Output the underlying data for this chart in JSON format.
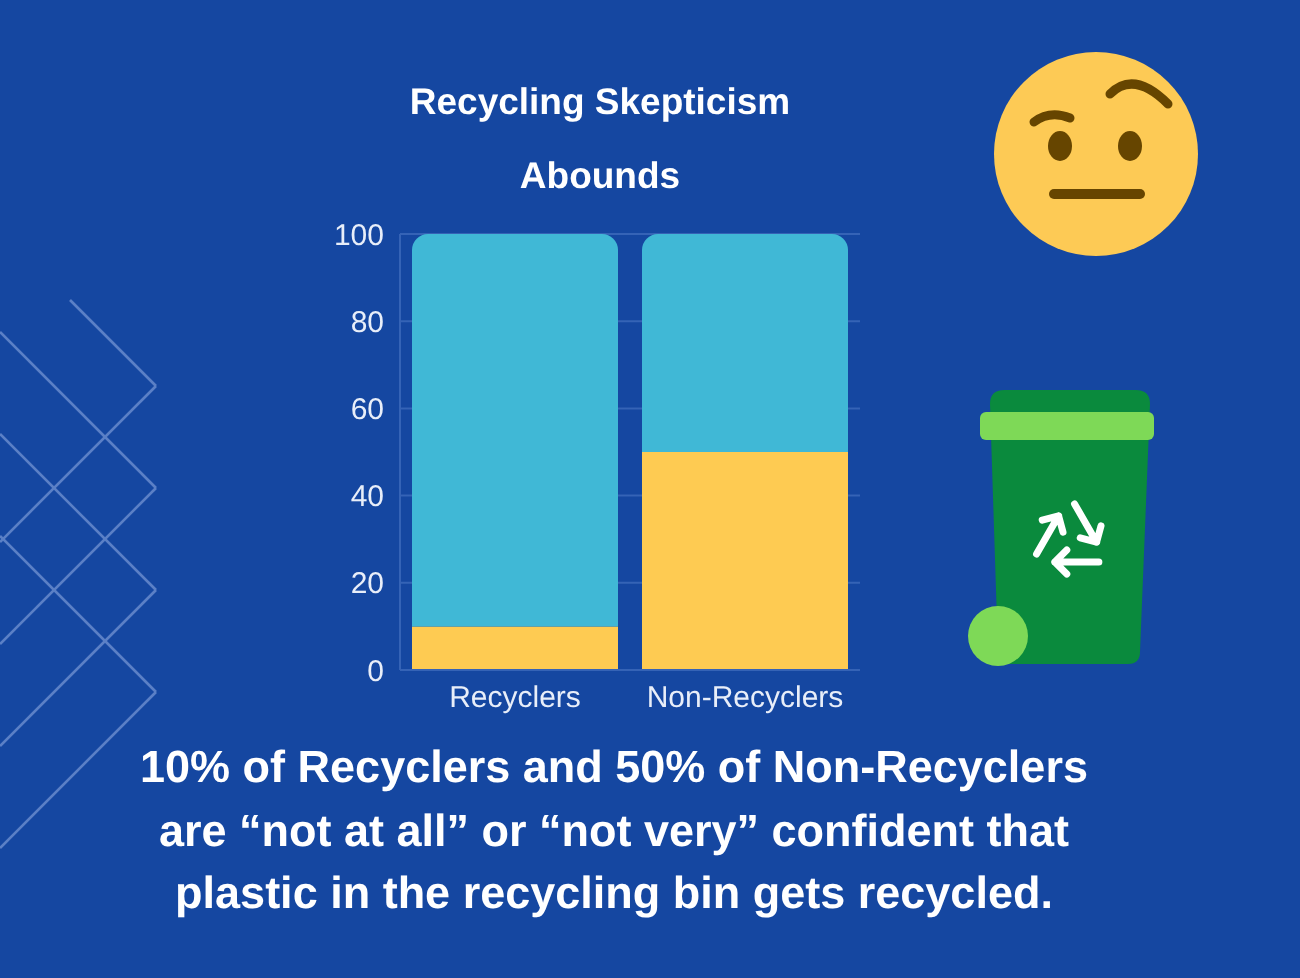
{
  "chart_data": {
    "type": "bar",
    "title": "Recycling Skepticism Abounds",
    "categories": [
      "Recyclers",
      "Non-Recyclers"
    ],
    "stacked": true,
    "series": [
      {
        "color": "#fecb52",
        "values": [
          10,
          50
        ]
      },
      {
        "color": "#40b8d6",
        "values": [
          90,
          50
        ]
      }
    ],
    "ylim": [
      0,
      100
    ],
    "yticks": [
      0,
      20,
      40,
      60,
      80,
      100
    ],
    "grid": "y",
    "annotations": [
      "10% of Recyclers and 50% of Non-Recyclers are “not at all” or “not very” confident that plastic in the recycling bin gets recycled."
    ]
  }
}
